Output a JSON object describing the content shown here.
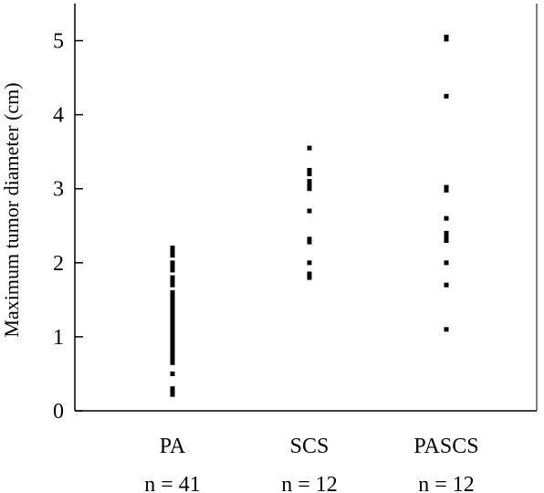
{
  "chart_data": {
    "type": "scatter",
    "ylabel": "Maximum tumor diameter (cm)",
    "xlabel": "",
    "ylim": [
      0,
      5.5
    ],
    "yticks": [
      0,
      1,
      2,
      3,
      4,
      5
    ],
    "categories": [
      "PA",
      "SCS",
      "PASCS"
    ],
    "sample_sizes": [
      "n = 41",
      "n = 12",
      "n = 12"
    ],
    "grid": false,
    "series": [
      {
        "category": "PA",
        "values": [
          2.2,
          2.15,
          2.1,
          2.0,
          1.95,
          1.9,
          1.8,
          1.78,
          1.75,
          1.7,
          1.6,
          1.55,
          1.5,
          1.45,
          1.4,
          1.35,
          1.32,
          1.3,
          1.25,
          1.2,
          1.18,
          1.15,
          1.1,
          1.05,
          1.0,
          0.98,
          0.95,
          0.9,
          0.88,
          0.85,
          0.8,
          0.78,
          0.75,
          0.72,
          0.7,
          0.65,
          0.5,
          0.3,
          0.28,
          0.25,
          0.22
        ]
      },
      {
        "category": "SCS",
        "values": [
          3.55,
          3.25,
          3.2,
          3.1,
          3.05,
          3.0,
          2.7,
          2.32,
          2.28,
          2.0,
          1.85,
          1.8
        ]
      },
      {
        "category": "PASCS",
        "values": [
          5.05,
          5.02,
          4.25,
          3.02,
          2.98,
          2.6,
          2.4,
          2.35,
          2.3,
          2.0,
          1.7,
          1.1
        ]
      }
    ],
    "marker_color": "#000000"
  }
}
